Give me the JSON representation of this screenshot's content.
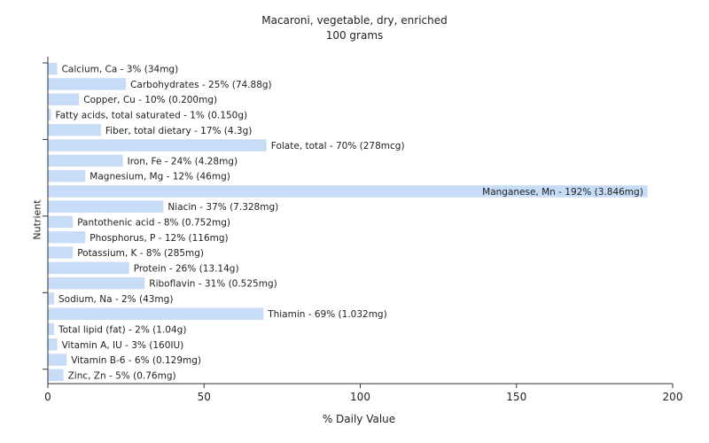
{
  "chart_data": {
    "type": "bar",
    "orientation": "horizontal",
    "title": "Macaroni, vegetable, dry, enriched",
    "subtitle": "100 grams",
    "xlabel": "% Daily Value",
    "ylabel": "Nutrient",
    "xlim": [
      0,
      200
    ],
    "xticks": [
      "0",
      "50",
      "100",
      "150",
      "200"
    ],
    "bar_color": "#c6dcf7",
    "grid": false,
    "categories": [
      "Calcium, Ca",
      "Carbohydrates",
      "Copper, Cu",
      "Fatty acids, total saturated",
      "Fiber, total dietary",
      "Folate, total",
      "Iron, Fe",
      "Magnesium, Mg",
      "Manganese, Mn",
      "Niacin",
      "Pantothenic acid",
      "Phosphorus, P",
      "Potassium, K",
      "Protein",
      "Riboflavin",
      "Sodium, Na",
      "Thiamin",
      "Total lipid (fat)",
      "Vitamin A, IU",
      "Vitamin B-6",
      "Zinc, Zn"
    ],
    "values": [
      3,
      25,
      10,
      1,
      17,
      70,
      24,
      12,
      192,
      37,
      8,
      12,
      8,
      26,
      31,
      2,
      69,
      2,
      3,
      6,
      5
    ],
    "labels": [
      "Calcium, Ca - 3% (34mg)",
      "Carbohydrates - 25% (74.88g)",
      "Copper, Cu - 10% (0.200mg)",
      "Fatty acids, total saturated - 1% (0.150g)",
      "Fiber, total dietary - 17% (4.3g)",
      "Folate, total - 70% (278mcg)",
      "Iron, Fe - 24% (4.28mg)",
      "Magnesium, Mg - 12% (46mg)",
      "Manganese, Mn - 192% (3.846mg)",
      "Niacin - 37% (7.328mg)",
      "Pantothenic acid - 8% (0.752mg)",
      "Phosphorus, P - 12% (116mg)",
      "Potassium, K - 8% (285mg)",
      "Protein - 26% (13.14g)",
      "Riboflavin - 31% (0.525mg)",
      "Sodium, Na - 2% (43mg)",
      "Thiamin - 69% (1.032mg)",
      "Total lipid (fat) - 2% (1.04g)",
      "Vitamin A, IU - 3% (160IU)",
      "Vitamin B-6 - 6% (0.129mg)",
      "Zinc, Zn - 5% (0.76mg)"
    ]
  }
}
